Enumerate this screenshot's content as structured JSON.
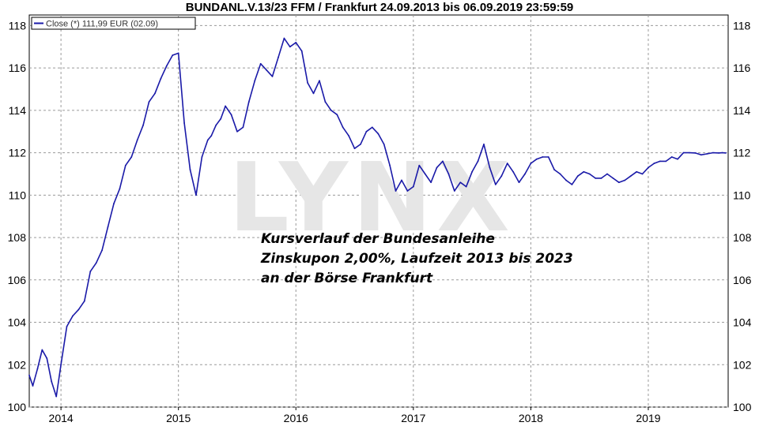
{
  "title": "BUNDANL.V.13/23 FFM / Frankfurt 24.09.2013 bis 06.09.2019 23:59:59",
  "legend": "Close (*) 111,99 EUR (02.09)",
  "watermark": "LYNX",
  "annotation": [
    "Kursverlauf der Bundesanleihe",
    "Zinskupon 2,00%, Laufzeit 2013 bis 2023",
    "an der Börse Frankfurt"
  ],
  "colors": {
    "line": "#1a1aa8",
    "grid": "#9a9a9a",
    "frame": "#000000"
  },
  "chart_data": {
    "type": "line",
    "title": "BUNDANL.V.13/23 FFM / Frankfurt 24.09.2013 bis 06.09.2019 23:59:59",
    "xlabel": "",
    "ylabel": "",
    "xlim": [
      2013.73,
      2019.68
    ],
    "ylim": [
      100,
      118.5
    ],
    "y_ticks": [
      100,
      102,
      104,
      106,
      108,
      110,
      112,
      114,
      116,
      118
    ],
    "x_ticks": [
      {
        "label": "2014",
        "value": 2014.0
      },
      {
        "label": "2015",
        "value": 2015.0
      },
      {
        "label": "2016",
        "value": 2016.0
      },
      {
        "label": "2017",
        "value": 2017.0
      },
      {
        "label": "2018",
        "value": 2018.0
      },
      {
        "label": "2019",
        "value": 2019.0
      }
    ],
    "grid": true,
    "legend_position": "top-left",
    "series": [
      {
        "name": "Close (*) 111,99 EUR (02.09)",
        "x": [
          2013.73,
          2013.76,
          2013.8,
          2013.84,
          2013.88,
          2013.92,
          2013.96,
          2014.0,
          2014.05,
          2014.1,
          2014.15,
          2014.2,
          2014.25,
          2014.3,
          2014.35,
          2014.4,
          2014.45,
          2014.5,
          2014.55,
          2014.6,
          2014.65,
          2014.7,
          2014.75,
          2014.8,
          2014.85,
          2014.9,
          2014.95,
          2015.0,
          2015.05,
          2015.1,
          2015.15,
          2015.2,
          2015.25,
          2015.28,
          2015.32,
          2015.36,
          2015.4,
          2015.45,
          2015.5,
          2015.55,
          2015.6,
          2015.65,
          2015.7,
          2015.75,
          2015.8,
          2015.85,
          2015.9,
          2015.95,
          2016.0,
          2016.05,
          2016.1,
          2016.15,
          2016.2,
          2016.25,
          2016.3,
          2016.35,
          2016.4,
          2016.45,
          2016.5,
          2016.55,
          2016.6,
          2016.65,
          2016.7,
          2016.75,
          2016.8,
          2016.85,
          2016.9,
          2016.95,
          2017.0,
          2017.05,
          2017.1,
          2017.15,
          2017.2,
          2017.25,
          2017.3,
          2017.35,
          2017.4,
          2017.45,
          2017.5,
          2017.55,
          2017.6,
          2017.65,
          2017.7,
          2017.75,
          2017.8,
          2017.85,
          2017.9,
          2017.95,
          2018.0,
          2018.05,
          2018.1,
          2018.15,
          2018.2,
          2018.25,
          2018.3,
          2018.35,
          2018.4,
          2018.45,
          2018.5,
          2018.55,
          2018.6,
          2018.65,
          2018.7,
          2018.75,
          2018.8,
          2018.85,
          2018.9,
          2018.95,
          2019.0,
          2019.05,
          2019.1,
          2019.15,
          2019.2,
          2019.25,
          2019.3,
          2019.35,
          2019.4,
          2019.45,
          2019.5,
          2019.55,
          2019.6,
          2019.63,
          2019.66
        ],
        "values": [
          101.5,
          101.0,
          101.8,
          102.7,
          102.3,
          101.2,
          100.5,
          102.0,
          103.8,
          104.3,
          104.6,
          105.0,
          106.4,
          106.8,
          107.4,
          108.5,
          109.6,
          110.3,
          111.4,
          111.8,
          112.6,
          113.3,
          114.4,
          114.8,
          115.5,
          116.1,
          116.6,
          116.7,
          113.4,
          111.2,
          110.0,
          111.8,
          112.6,
          112.8,
          113.3,
          113.6,
          114.2,
          113.8,
          113.0,
          113.2,
          114.4,
          115.4,
          116.2,
          115.9,
          115.6,
          116.5,
          117.4,
          117.0,
          117.2,
          116.8,
          115.3,
          114.8,
          115.4,
          114.4,
          114.0,
          113.8,
          113.2,
          112.8,
          112.2,
          112.4,
          113.0,
          113.2,
          112.9,
          112.4,
          111.4,
          110.2,
          110.7,
          110.2,
          110.4,
          111.4,
          111.0,
          110.6,
          111.3,
          111.6,
          111.0,
          110.2,
          110.6,
          110.4,
          111.1,
          111.6,
          112.4,
          111.3,
          110.5,
          110.9,
          111.5,
          111.1,
          110.6,
          111.0,
          111.5,
          111.7,
          111.8,
          111.8,
          111.2,
          111.0,
          110.7,
          110.5,
          110.9,
          111.1,
          111.0,
          110.8,
          110.8,
          111.0,
          110.8,
          110.6,
          110.7,
          110.9,
          111.1,
          111.0,
          111.3,
          111.5,
          111.6,
          111.6,
          111.8,
          111.7,
          112.0,
          112.0,
          111.99,
          111.9,
          111.95,
          112.0,
          111.99,
          112.0,
          111.99
        ]
      }
    ]
  }
}
